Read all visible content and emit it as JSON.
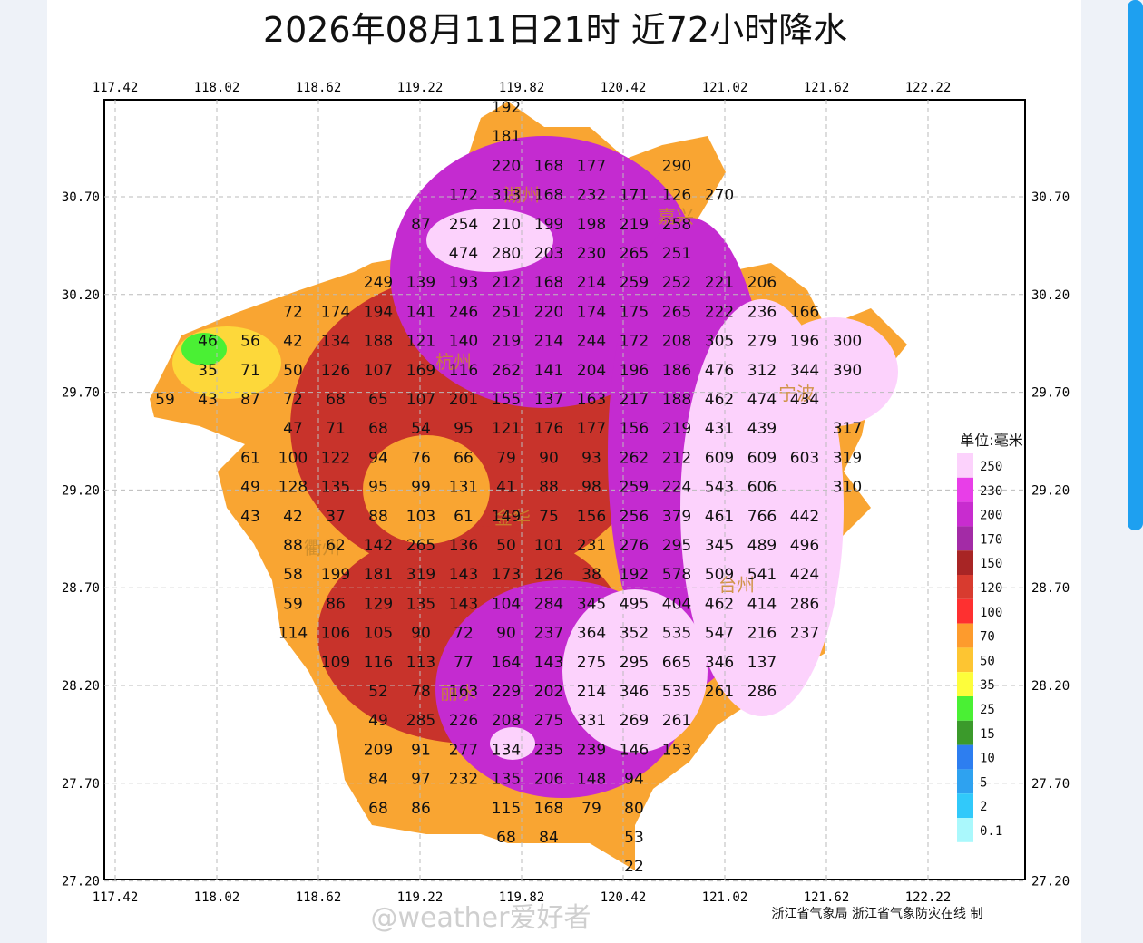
{
  "title": "2026年08月11日21时  近72小时降水",
  "lon_ticks": [
    "117.42",
    "118.02",
    "118.62",
    "119.22",
    "119.82",
    "120.42",
    "121.02",
    "121.62",
    "122.22"
  ],
  "lat_ticks": [
    "30.70",
    "30.20",
    "29.70",
    "29.20",
    "28.70",
    "28.20",
    "27.70",
    "27.20"
  ],
  "cities": [
    "湖州",
    "嘉兴",
    "杭州",
    "宁波",
    "金华",
    "衢州",
    "台州",
    "丽水"
  ],
  "legend": {
    "title": "单位:毫米",
    "items": [
      {
        "label": "250",
        "color": "#fcd2fc"
      },
      {
        "label": "230",
        "color": "#e83ee8"
      },
      {
        "label": "200",
        "color": "#c82ccf"
      },
      {
        "label": "170",
        "color": "#a32ba6"
      },
      {
        "label": "150",
        "color": "#a82525"
      },
      {
        "label": "120",
        "color": "#d83b2f"
      },
      {
        "label": "100",
        "color": "#fe3030"
      },
      {
        "label": "70",
        "color": "#fd9b2d"
      },
      {
        "label": "50",
        "color": "#fdc532"
      },
      {
        "label": "35",
        "color": "#fdfd3b"
      },
      {
        "label": "25",
        "color": "#4af034"
      },
      {
        "label": "15",
        "color": "#3b9a2b"
      },
      {
        "label": "10",
        "color": "#2d7ef0"
      },
      {
        "label": "5",
        "color": "#2ea2f0"
      },
      {
        "label": "2",
        "color": "#31c9fa"
      },
      {
        "label": "0.1",
        "color": "#aaf8fc"
      }
    ]
  },
  "stations": [
    [
      null,
      null,
      null,
      null,
      null,
      null,
      null,
      null,
      192,
      null,
      null,
      null,
      null,
      null,
      null,
      null,
      null,
      null,
      null
    ],
    [
      null,
      null,
      null,
      null,
      null,
      null,
      null,
      null,
      181,
      null,
      null,
      null,
      null,
      null,
      null,
      null,
      null,
      null,
      null
    ],
    [
      null,
      null,
      null,
      null,
      null,
      null,
      null,
      null,
      220,
      168,
      177,
      null,
      290,
      null,
      null,
      null,
      null,
      null,
      null
    ],
    [
      null,
      null,
      null,
      null,
      null,
      null,
      null,
      172,
      313,
      168,
      232,
      171,
      126,
      270,
      null,
      null,
      null,
      null,
      null
    ],
    [
      null,
      null,
      null,
      null,
      null,
      null,
      87,
      254,
      210,
      199,
      198,
      219,
      258,
      null,
      null,
      null,
      null,
      null,
      null
    ],
    [
      null,
      null,
      null,
      null,
      null,
      null,
      null,
      474,
      280,
      203,
      230,
      265,
      251,
      null,
      null,
      null,
      null,
      null,
      null
    ],
    [
      null,
      null,
      null,
      null,
      null,
      249,
      139,
      193,
      212,
      168,
      214,
      259,
      252,
      221,
      206,
      null,
      null,
      null,
      null
    ],
    [
      null,
      null,
      null,
      72,
      174,
      194,
      141,
      246,
      251,
      220,
      174,
      175,
      265,
      222,
      236,
      166,
      null,
      null,
      null
    ],
    [
      null,
      46,
      56,
      42,
      134,
      188,
      121,
      140,
      219,
      214,
      244,
      172,
      208,
      305,
      279,
      196,
      300,
      null,
      null
    ],
    [
      null,
      35,
      71,
      50,
      126,
      107,
      169,
      116,
      262,
      141,
      204,
      196,
      186,
      476,
      312,
      344,
      390,
      null,
      null
    ],
    [
      59,
      43,
      87,
      72,
      68,
      65,
      107,
      201,
      155,
      137,
      163,
      217,
      188,
      462,
      474,
      434,
      null,
      null,
      null
    ],
    [
      null,
      null,
      null,
      47,
      71,
      68,
      54,
      95,
      121,
      176,
      177,
      156,
      219,
      431,
      439,
      null,
      317,
      null,
      null
    ],
    [
      null,
      null,
      61,
      100,
      122,
      94,
      76,
      66,
      79,
      90,
      93,
      262,
      212,
      609,
      609,
      603,
      319,
      null,
      null
    ],
    [
      null,
      null,
      49,
      128,
      135,
      95,
      99,
      131,
      41,
      88,
      98,
      259,
      224,
      543,
      606,
      null,
      310,
      null,
      null
    ],
    [
      null,
      null,
      43,
      42,
      37,
      88,
      103,
      61,
      149,
      75,
      156,
      256,
      379,
      461,
      766,
      442,
      null,
      null,
      null
    ],
    [
      null,
      null,
      null,
      88,
      62,
      142,
      265,
      136,
      50,
      101,
      231,
      276,
      295,
      345,
      489,
      496,
      null,
      null,
      null
    ],
    [
      null,
      null,
      null,
      58,
      199,
      181,
      319,
      143,
      173,
      126,
      38,
      192,
      578,
      509,
      541,
      424,
      null,
      null,
      null
    ],
    [
      null,
      null,
      null,
      59,
      86,
      129,
      135,
      143,
      104,
      284,
      345,
      495,
      404,
      462,
      414,
      286,
      null,
      null,
      null
    ],
    [
      null,
      null,
      null,
      114,
      106,
      105,
      90,
      72,
      90,
      237,
      364,
      352,
      535,
      547,
      216,
      237,
      null,
      null,
      null
    ],
    [
      null,
      null,
      null,
      null,
      109,
      116,
      113,
      77,
      164,
      143,
      275,
      295,
      665,
      346,
      137,
      null,
      null,
      null,
      null
    ],
    [
      null,
      null,
      null,
      null,
      null,
      52,
      78,
      163,
      229,
      202,
      214,
      346,
      535,
      261,
      286,
      null,
      null,
      null,
      null
    ],
    [
      null,
      null,
      null,
      null,
      null,
      49,
      285,
      226,
      208,
      275,
      331,
      269,
      261,
      null,
      null,
      null,
      null,
      null,
      null
    ],
    [
      null,
      null,
      null,
      null,
      null,
      209,
      91,
      277,
      134,
      235,
      239,
      146,
      153,
      null,
      null,
      null,
      null,
      null,
      null
    ],
    [
      null,
      null,
      null,
      null,
      null,
      84,
      97,
      232,
      135,
      206,
      148,
      94,
      null,
      null,
      null,
      null,
      null,
      null,
      null
    ],
    [
      null,
      null,
      null,
      null,
      null,
      68,
      86,
      null,
      115,
      168,
      79,
      80,
      null,
      null,
      null,
      null,
      null,
      null,
      null
    ],
    [
      null,
      null,
      null,
      null,
      null,
      null,
      null,
      null,
      68,
      84,
      null,
      53,
      null,
      null,
      null,
      null,
      null,
      null,
      null
    ],
    [
      null,
      null,
      null,
      null,
      null,
      null,
      null,
      null,
      null,
      null,
      null,
      22,
      null,
      null,
      null,
      null,
      null,
      null,
      null
    ]
  ],
  "footer": "浙江省气象局 浙江省气象防灾在线 制",
  "watermark": "@weather爱好者"
}
